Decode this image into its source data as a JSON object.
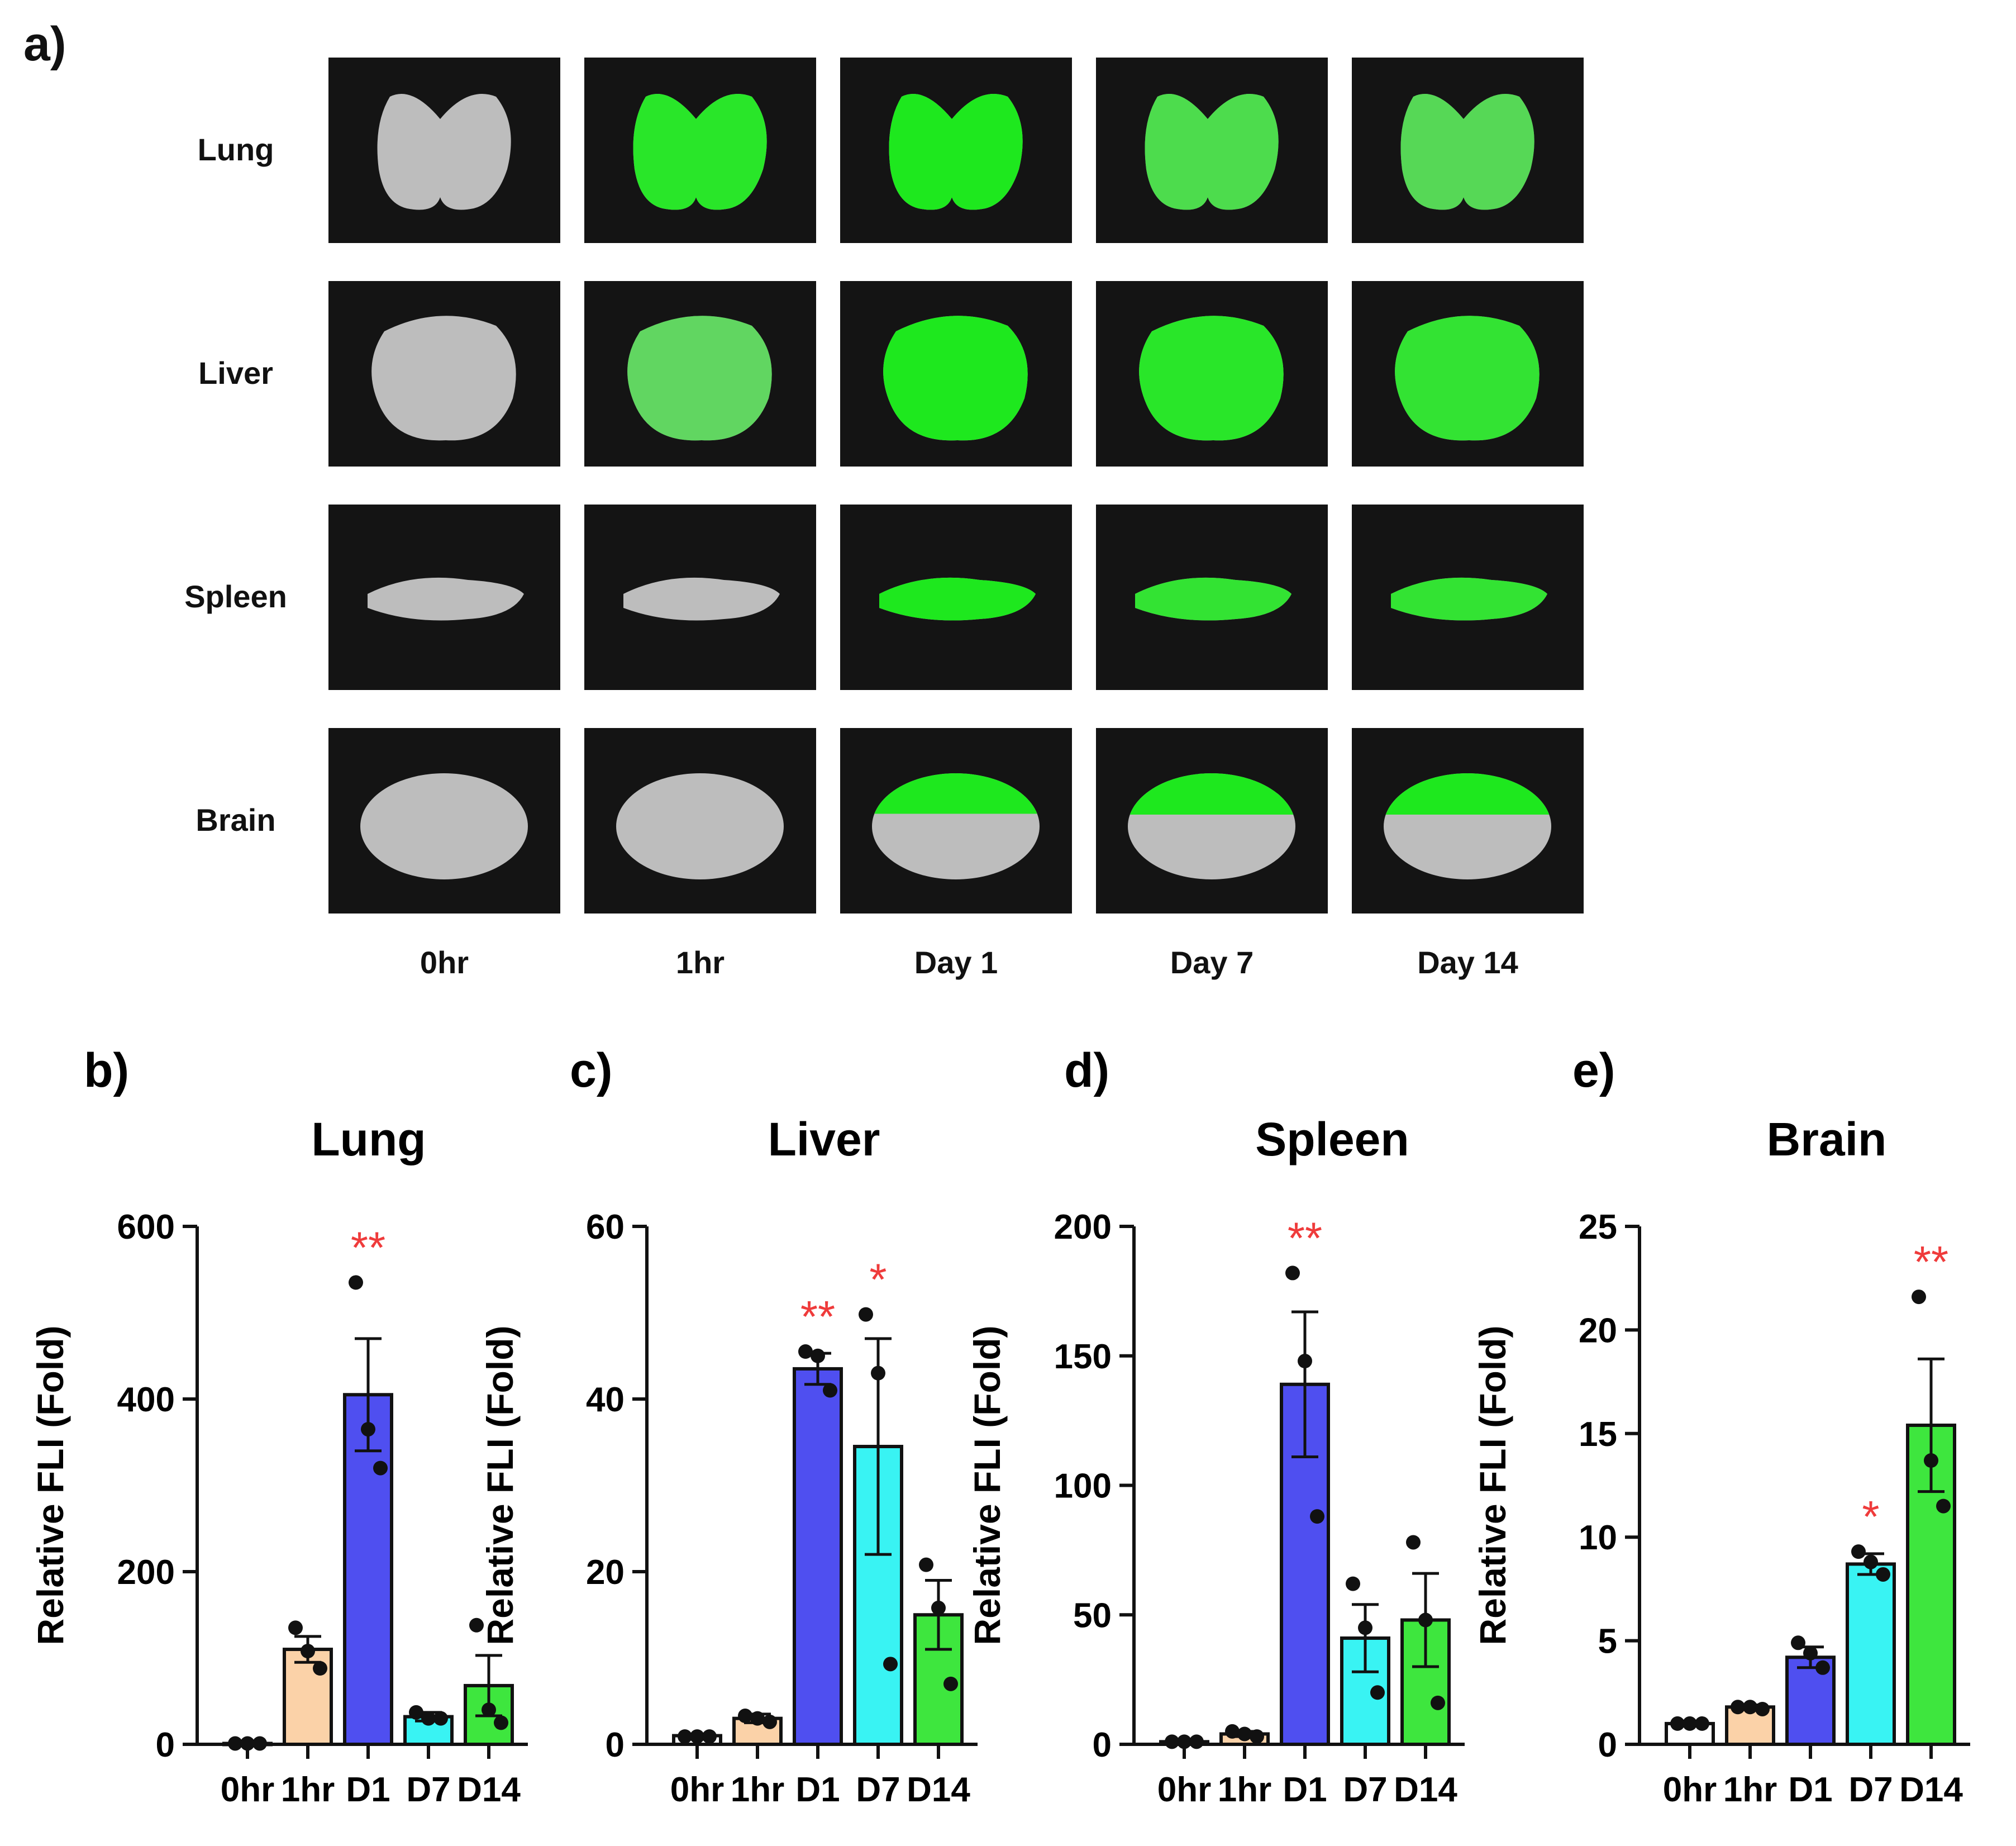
{
  "panel_a": {
    "label": "a)",
    "rows": [
      "Lung",
      "Liver",
      "Spleen",
      "Brain"
    ],
    "columns": [
      "0hr",
      "1hr",
      "Day 1",
      "Day 7",
      "Day 14"
    ],
    "tissue_color": "#bdbdbd",
    "signal_color": "#1ee81e",
    "background_color": "#141414"
  },
  "chart_data": [
    {
      "panel": "b)",
      "type": "bar",
      "title": "Lung",
      "ylabel": "Relative FLI (Fold)",
      "xlabel": "",
      "categories": [
        "0hr",
        "1hr",
        "D1",
        "D7",
        "D14"
      ],
      "values": [
        1,
        110,
        405,
        32,
        68
      ],
      "sem": [
        0,
        15,
        65,
        5,
        35
      ],
      "points": [
        [
          1,
          1,
          1
        ],
        [
          135,
          108,
          88
        ],
        [
          535,
          365,
          320
        ],
        [
          37,
          30,
          30
        ],
        [
          138,
          40,
          25
        ]
      ],
      "significance": [
        "",
        "",
        "**",
        "",
        ""
      ],
      "ylim": [
        0,
        600
      ],
      "yticks": [
        0,
        200,
        400,
        600
      ],
      "colors": [
        "#ffffff",
        "#fbd2a8",
        "#4f4ff0",
        "#39f3f3",
        "#3ee63e"
      ]
    },
    {
      "panel": "c)",
      "type": "bar",
      "title": "Liver",
      "ylabel": "Relative FLI (Fold)",
      "xlabel": "",
      "categories": [
        "0hr",
        "1hr",
        "D1",
        "D7",
        "D14"
      ],
      "values": [
        1,
        3,
        43.5,
        34.5,
        15
      ],
      "sem": [
        0,
        0.5,
        1.8,
        12.5,
        4
      ],
      "points": [
        [
          0.9,
          0.9,
          0.9
        ],
        [
          3.3,
          3.0,
          2.6
        ],
        [
          45.5,
          45.0,
          41.0
        ],
        [
          49.8,
          43.0,
          9.3
        ],
        [
          20.8,
          15.8,
          7.0
        ]
      ],
      "significance": [
        "",
        "",
        "**",
        "*",
        ""
      ],
      "ylim": [
        0,
        60
      ],
      "yticks": [
        0,
        20,
        40,
        60
      ],
      "colors": [
        "#ffffff",
        "#fbd2a8",
        "#4f4ff0",
        "#39f3f3",
        "#3ee63e"
      ]
    },
    {
      "panel": "d)",
      "type": "bar",
      "title": "Spleen",
      "ylabel": "Relative FLI (Fold)",
      "xlabel": "",
      "categories": [
        "0hr",
        "1hr",
        "D1",
        "D7",
        "D14"
      ],
      "values": [
        1,
        4,
        139,
        41,
        48
      ],
      "sem": [
        0,
        1,
        28,
        13,
        18
      ],
      "points": [
        [
          1,
          1,
          1
        ],
        [
          5,
          4,
          3
        ],
        [
          182,
          148,
          88
        ],
        [
          62,
          45,
          20
        ],
        [
          78,
          48,
          16
        ]
      ],
      "significance": [
        "",
        "",
        "**",
        "",
        ""
      ],
      "ylim": [
        0,
        200
      ],
      "yticks": [
        0,
        50,
        100,
        150,
        200
      ],
      "colors": [
        "#ffffff",
        "#fbd2a8",
        "#4f4ff0",
        "#39f3f3",
        "#3ee63e"
      ]
    },
    {
      "panel": "e)",
      "type": "bar",
      "title": "Brain",
      "ylabel": "Relative FLI (Fold)",
      "xlabel": "",
      "categories": [
        "0hr",
        "1hr",
        "D1",
        "D7",
        "D14"
      ],
      "values": [
        1,
        1.8,
        4.2,
        8.7,
        15.4
      ],
      "sem": [
        0,
        0.1,
        0.5,
        0.5,
        3.2
      ],
      "points": [
        [
          1,
          1,
          1
        ],
        [
          1.8,
          1.8,
          1.7
        ],
        [
          4.9,
          4.4,
          3.7
        ],
        [
          9.3,
          8.8,
          8.2
        ],
        [
          21.6,
          13.7,
          11.5
        ]
      ],
      "significance": [
        "",
        "",
        "",
        "*",
        "**"
      ],
      "ylim": [
        0,
        25
      ],
      "yticks": [
        0,
        5,
        10,
        15,
        20,
        25
      ],
      "colors": [
        "#ffffff",
        "#fbd2a8",
        "#4f4ff0",
        "#39f3f3",
        "#3ee63e"
      ]
    }
  ]
}
